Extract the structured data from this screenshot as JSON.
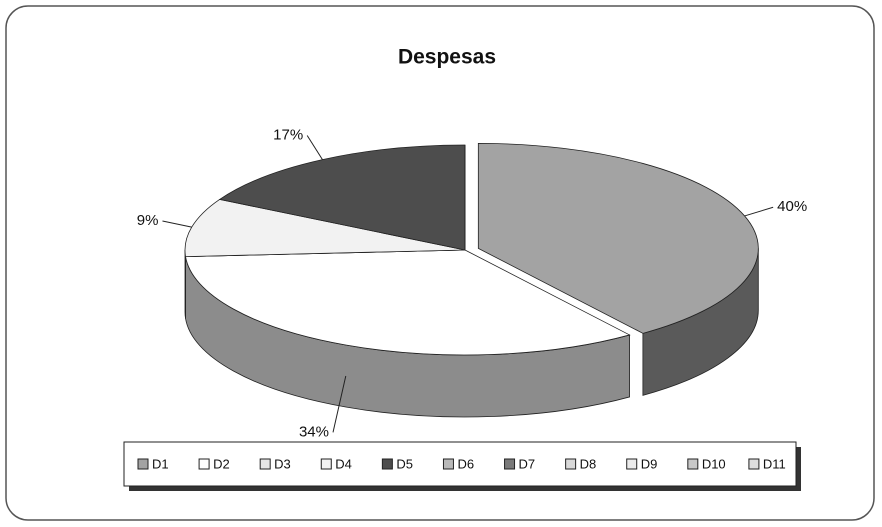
{
  "chart_data": {
    "type": "pie",
    "title": "Despesas",
    "categories": [
      "D1",
      "D2",
      "D3",
      "D4",
      "D5",
      "D6",
      "D7",
      "D8",
      "D9",
      "D10",
      "D11"
    ],
    "values": [
      40,
      34,
      0,
      9,
      17,
      0,
      0,
      0,
      0,
      0,
      0
    ],
    "value_labels": [
      "40%",
      "34%",
      null,
      "9%",
      "17%",
      null,
      null,
      null,
      null,
      null,
      null
    ],
    "colors": [
      "#a3a3a3",
      "#ffffff",
      "#e6e6e6",
      "#f2f2f2",
      "#4d4d4d",
      "#b8b8b8",
      "#7a7a7a",
      "#d9d9d9",
      "#ececec",
      "#c8c8c8",
      "#dedede"
    ],
    "legend": "bottom"
  }
}
